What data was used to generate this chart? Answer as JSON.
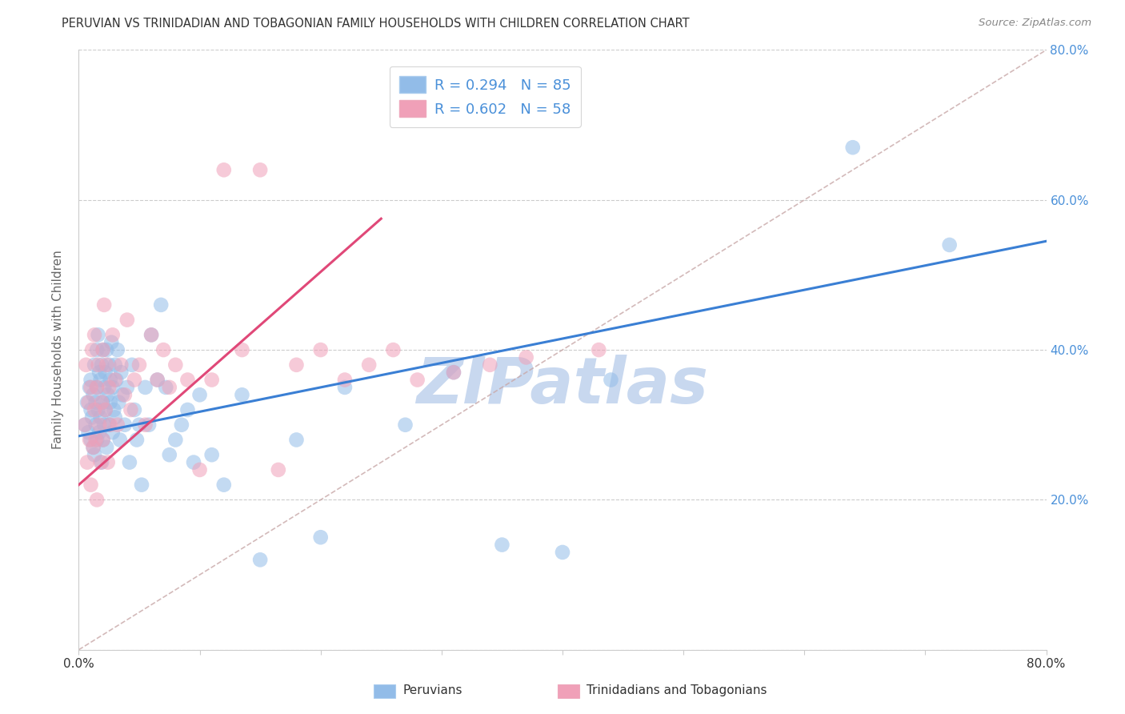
{
  "title": "PERUVIAN VS TRINIDADIAN AND TOBAGONIAN FAMILY HOUSEHOLDS WITH CHILDREN CORRELATION CHART",
  "source": "Source: ZipAtlas.com",
  "ylabel": "Family Households with Children",
  "xlabel_peruvians": "Peruvians",
  "xlabel_trinidadians": "Trinidadians and Tobagonians",
  "xlim": [
    0.0,
    0.8
  ],
  "ylim": [
    0.0,
    0.8
  ],
  "r_peruvian": 0.294,
  "n_peruvian": 85,
  "r_trinidadian": 0.602,
  "n_trinidadian": 58,
  "color_peruvian": "#92bce8",
  "color_trinidadian": "#f0a0b8",
  "line_color_peruvian": "#3a7fd4",
  "line_color_trinidadian": "#e04878",
  "diagonal_color": "#c8a8a8",
  "watermark_color": "#c8d8ef",
  "right_axis_color": "#4a90d9",
  "background_color": "#ffffff",
  "peru_trend_x0": 0.0,
  "peru_trend_y0": 0.285,
  "peru_trend_x1": 0.8,
  "peru_trend_y1": 0.545,
  "trin_trend_x0": 0.0,
  "trin_trend_y0": 0.22,
  "trin_trend_x1": 0.25,
  "trin_trend_y1": 0.575,
  "peru_scatter_x": [
    0.005,
    0.007,
    0.008,
    0.009,
    0.01,
    0.01,
    0.01,
    0.011,
    0.012,
    0.012,
    0.013,
    0.013,
    0.014,
    0.014,
    0.015,
    0.015,
    0.015,
    0.016,
    0.016,
    0.017,
    0.017,
    0.018,
    0.018,
    0.019,
    0.019,
    0.02,
    0.02,
    0.02,
    0.021,
    0.021,
    0.022,
    0.022,
    0.023,
    0.023,
    0.024,
    0.025,
    0.025,
    0.026,
    0.026,
    0.027,
    0.028,
    0.028,
    0.029,
    0.03,
    0.03,
    0.031,
    0.032,
    0.033,
    0.034,
    0.035,
    0.036,
    0.038,
    0.04,
    0.042,
    0.044,
    0.046,
    0.048,
    0.05,
    0.052,
    0.055,
    0.058,
    0.06,
    0.065,
    0.068,
    0.072,
    0.075,
    0.08,
    0.085,
    0.09,
    0.095,
    0.1,
    0.11,
    0.12,
    0.135,
    0.15,
    0.18,
    0.2,
    0.22,
    0.27,
    0.31,
    0.35,
    0.4,
    0.44,
    0.64,
    0.72
  ],
  "peru_scatter_y": [
    0.3,
    0.33,
    0.29,
    0.35,
    0.32,
    0.28,
    0.36,
    0.31,
    0.34,
    0.27,
    0.38,
    0.26,
    0.33,
    0.3,
    0.4,
    0.35,
    0.28,
    0.42,
    0.32,
    0.37,
    0.29,
    0.36,
    0.31,
    0.38,
    0.25,
    0.33,
    0.4,
    0.28,
    0.35,
    0.3,
    0.37,
    0.32,
    0.4,
    0.27,
    0.34,
    0.38,
    0.3,
    0.36,
    0.33,
    0.41,
    0.29,
    0.35,
    0.32,
    0.38,
    0.31,
    0.36,
    0.4,
    0.33,
    0.28,
    0.37,
    0.34,
    0.3,
    0.35,
    0.25,
    0.38,
    0.32,
    0.28,
    0.3,
    0.22,
    0.35,
    0.3,
    0.42,
    0.36,
    0.46,
    0.35,
    0.26,
    0.28,
    0.3,
    0.32,
    0.25,
    0.34,
    0.26,
    0.22,
    0.34,
    0.12,
    0.28,
    0.15,
    0.35,
    0.3,
    0.37,
    0.14,
    0.13,
    0.36,
    0.67,
    0.54
  ],
  "trin_scatter_x": [
    0.005,
    0.006,
    0.007,
    0.008,
    0.009,
    0.01,
    0.01,
    0.011,
    0.012,
    0.013,
    0.013,
    0.014,
    0.015,
    0.015,
    0.016,
    0.017,
    0.018,
    0.019,
    0.02,
    0.02,
    0.021,
    0.022,
    0.023,
    0.024,
    0.025,
    0.026,
    0.028,
    0.03,
    0.032,
    0.035,
    0.038,
    0.04,
    0.043,
    0.046,
    0.05,
    0.055,
    0.06,
    0.065,
    0.07,
    0.075,
    0.08,
    0.09,
    0.1,
    0.11,
    0.12,
    0.135,
    0.15,
    0.165,
    0.18,
    0.2,
    0.22,
    0.24,
    0.26,
    0.28,
    0.31,
    0.34,
    0.37,
    0.43
  ],
  "trin_scatter_y": [
    0.3,
    0.38,
    0.25,
    0.33,
    0.28,
    0.35,
    0.22,
    0.4,
    0.27,
    0.32,
    0.42,
    0.28,
    0.35,
    0.2,
    0.38,
    0.3,
    0.25,
    0.33,
    0.4,
    0.28,
    0.46,
    0.32,
    0.38,
    0.25,
    0.35,
    0.3,
    0.42,
    0.36,
    0.3,
    0.38,
    0.34,
    0.44,
    0.32,
    0.36,
    0.38,
    0.3,
    0.42,
    0.36,
    0.4,
    0.35,
    0.38,
    0.36,
    0.24,
    0.36,
    0.64,
    0.4,
    0.64,
    0.24,
    0.38,
    0.4,
    0.36,
    0.38,
    0.4,
    0.36,
    0.37,
    0.38,
    0.39,
    0.4
  ]
}
